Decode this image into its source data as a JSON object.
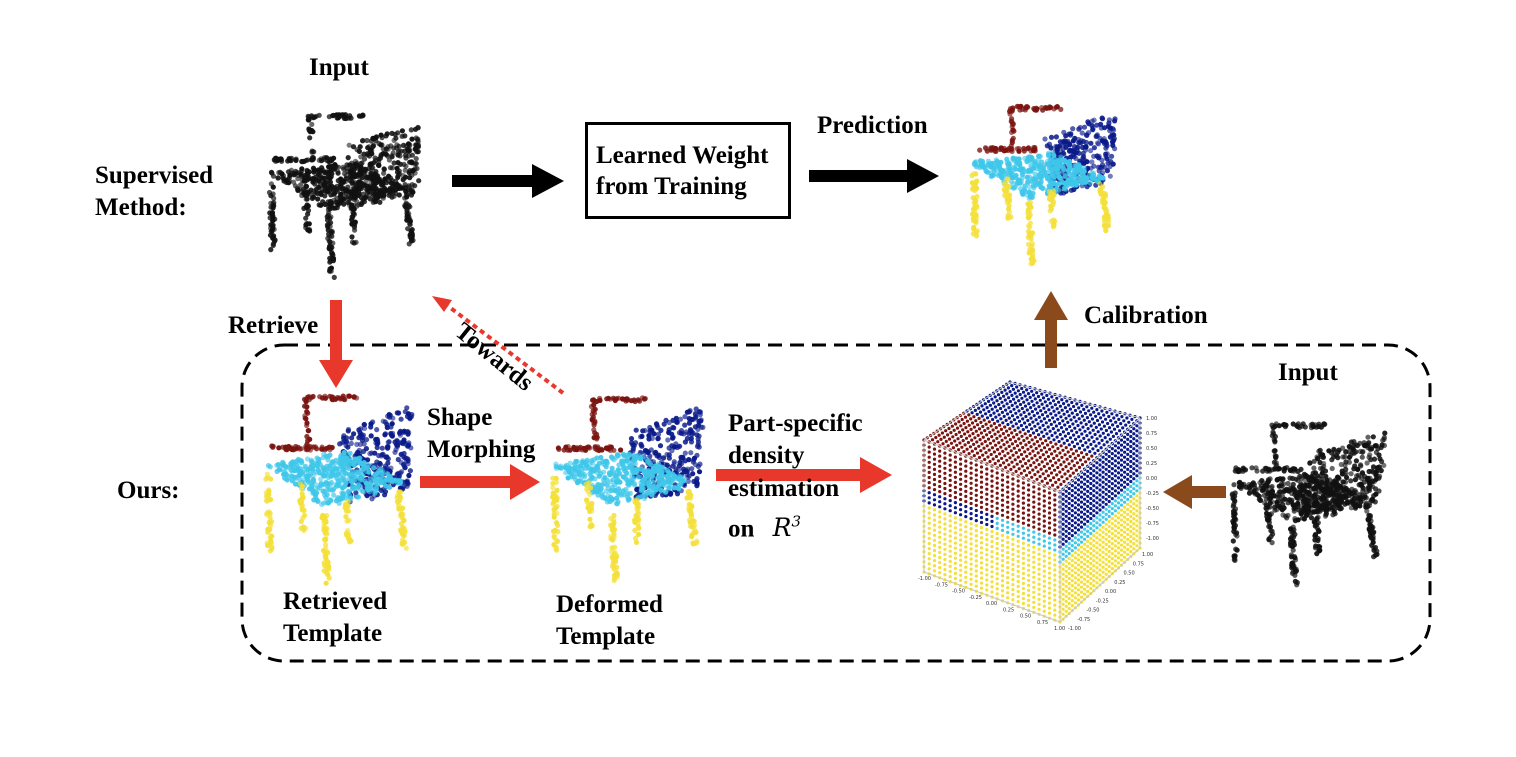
{
  "labels": {
    "input_top": "Input",
    "supervised_line1": "Supervised",
    "supervised_line2": "Method:",
    "learned_line1": "Learned Weight",
    "learned_line2": "from Training",
    "prediction": "Prediction",
    "calibration": "Calibration",
    "retrieve": "Retrieve",
    "towards": "Towards",
    "ours": "Ours:",
    "shape_line1": "Shape",
    "shape_line2": "Morphing",
    "part_line1": "Part-specific",
    "part_line2": "density",
    "part_line3": "estimation",
    "part_line4_prefix": "on",
    "part_line4_math": "R",
    "part_line4_sup": "3",
    "input_right": "Input",
    "retrieved_line1": "Retrieved",
    "retrieved_line2": "Template",
    "deformed_line1": "Deformed",
    "deformed_line2": "Template"
  },
  "cube_axis_ticks": [
    "-1.00",
    "-0.75",
    "-0.50",
    "-0.25",
    "0.00",
    "0.25",
    "0.50",
    "0.75",
    "1.00"
  ],
  "colors": {
    "red_arrow": "#e8382c",
    "brown_arrow": "#8b4a1c",
    "black": "#000000",
    "part_back": "#0a1a8a",
    "part_arm": "#7a1410",
    "part_seat": "#3fc7ea",
    "part_leg": "#f4e03a",
    "point_black": "#111111"
  }
}
